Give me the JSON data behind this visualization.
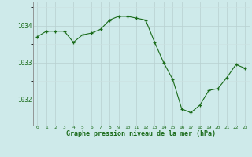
{
  "x": [
    0,
    1,
    2,
    3,
    4,
    5,
    6,
    7,
    8,
    9,
    10,
    11,
    12,
    13,
    14,
    15,
    16,
    17,
    18,
    19,
    20,
    21,
    22,
    23
  ],
  "y": [
    1033.7,
    1033.85,
    1033.85,
    1033.85,
    1033.55,
    1033.75,
    1033.8,
    1033.9,
    1034.15,
    1034.25,
    1034.25,
    1034.2,
    1034.15,
    1033.55,
    1033.0,
    1032.55,
    1031.75,
    1031.65,
    1031.85,
    1032.25,
    1032.3,
    1032.6,
    1032.95,
    1032.85
  ],
  "line_color": "#1a6b1a",
  "marker_color": "#1a6b1a",
  "bg_color": "#ceeaea",
  "grid_color_major": "#b8d0d0",
  "grid_color_minor": "#cce0e0",
  "xlabel": "Graphe pression niveau de la mer (hPa)",
  "xlabel_color": "#1a6b1a",
  "ylabel_ticks": [
    1032,
    1033,
    1034
  ],
  "xtick_labels": [
    "0",
    "1",
    "2",
    "3",
    "4",
    "5",
    "6",
    "7",
    "8",
    "9",
    "10",
    "11",
    "12",
    "13",
    "14",
    "15",
    "16",
    "17",
    "18",
    "19",
    "20",
    "21",
    "22",
    "23"
  ],
  "ylim": [
    1031.3,
    1034.65
  ],
  "xlim": [
    -0.5,
    23.5
  ]
}
